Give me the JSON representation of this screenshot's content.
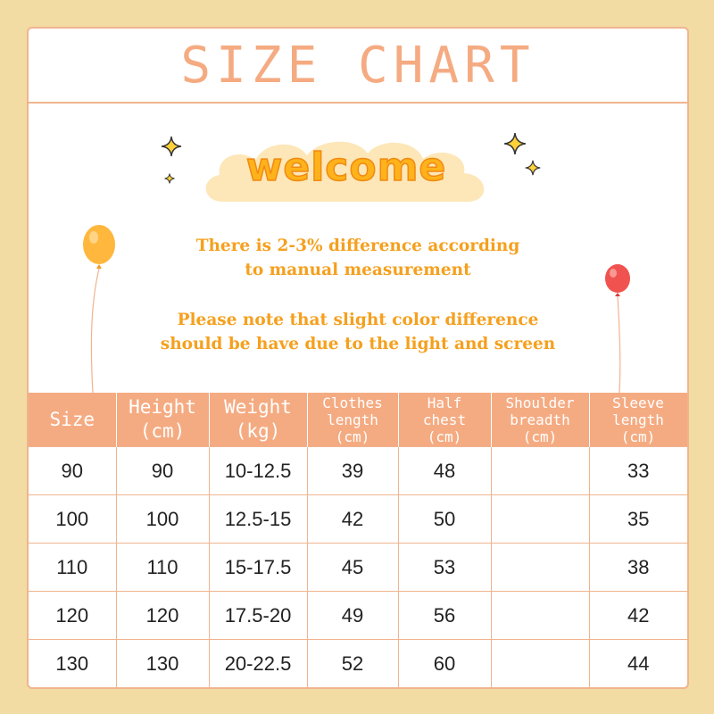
{
  "title": "SIZE CHART",
  "welcome": "welcome",
  "notes": [
    {
      "line1": "There is 2-3% difference according",
      "line2": "to manual measurement"
    },
    {
      "line1": "Please note that slight color difference",
      "line2": "should be have due to the light and screen"
    }
  ],
  "colors": {
    "background": "#f2dca4",
    "accent": "#f5ab82",
    "welcome_text": "#ffb21a",
    "note_text": "#f5a01e"
  },
  "table": {
    "headers": [
      {
        "line1": "Size",
        "line2": ""
      },
      {
        "line1": "Height",
        "line2": "(cm)"
      },
      {
        "line1": "Weight",
        "line2": "(kg)"
      },
      {
        "line1": "Clothes",
        "line2": "length",
        "line3": "(cm)"
      },
      {
        "line1": "Half",
        "line2": "chest",
        "line3": "(cm)"
      },
      {
        "line1": "Shoulder",
        "line2": "breadth",
        "line3": "(cm)"
      },
      {
        "line1": "Sleeve",
        "line2": "length",
        "line3": "(cm)"
      }
    ],
    "rows": [
      [
        "90",
        "90",
        "10-12.5",
        "39",
        "48",
        "",
        "33"
      ],
      [
        "100",
        "100",
        "12.5-15",
        "42",
        "50",
        "",
        "35"
      ],
      [
        "110",
        "110",
        "15-17.5",
        "45",
        "53",
        "",
        "38"
      ],
      [
        "120",
        "120",
        "17.5-20",
        "49",
        "56",
        "",
        "42"
      ],
      [
        "130",
        "130",
        "20-22.5",
        "52",
        "60",
        "",
        "44"
      ]
    ]
  }
}
